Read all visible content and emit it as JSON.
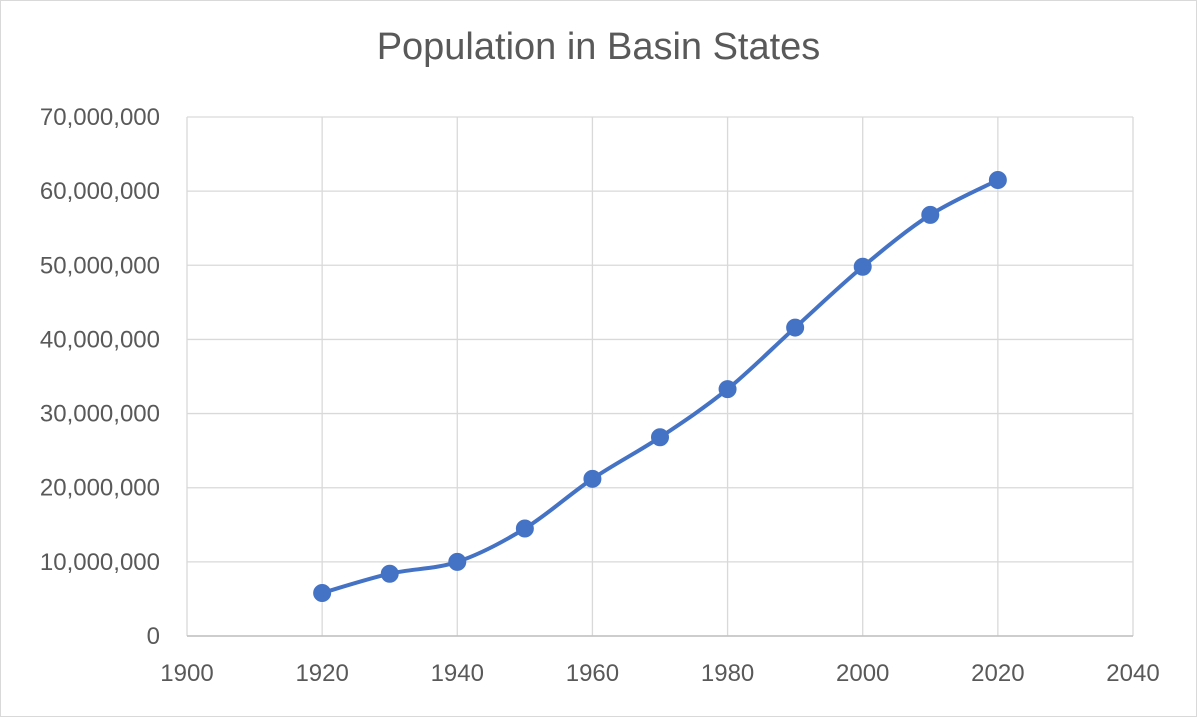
{
  "chart_data": {
    "type": "scatter",
    "title": "Population in Basin States",
    "xlabel": "",
    "ylabel": "",
    "xlim": [
      1900,
      2040
    ],
    "ylim": [
      0,
      70000000
    ],
    "x_ticks": [
      1900,
      1920,
      1940,
      1960,
      1980,
      2000,
      2020,
      2040
    ],
    "y_ticks": [
      0,
      10000000,
      20000000,
      30000000,
      40000000,
      50000000,
      60000000,
      70000000
    ],
    "x_tick_labels": [
      "1900",
      "1920",
      "1940",
      "1960",
      "1980",
      "2000",
      "2020",
      "2040"
    ],
    "y_tick_labels": [
      "0",
      "10,000,000",
      "20,000,000",
      "30,000,000",
      "40,000,000",
      "50,000,000",
      "60,000,000",
      "70,000,000"
    ],
    "grid": true,
    "smooth_line": true,
    "series": [
      {
        "color": "#4472c4",
        "x": [
          1920,
          1930,
          1940,
          1950,
          1960,
          1970,
          1980,
          1990,
          2000,
          2010,
          2020
        ],
        "y": [
          5800000,
          8400000,
          10000000,
          14500000,
          21200000,
          26800000,
          33300000,
          41600000,
          49800000,
          56800000,
          61500000
        ]
      }
    ]
  }
}
